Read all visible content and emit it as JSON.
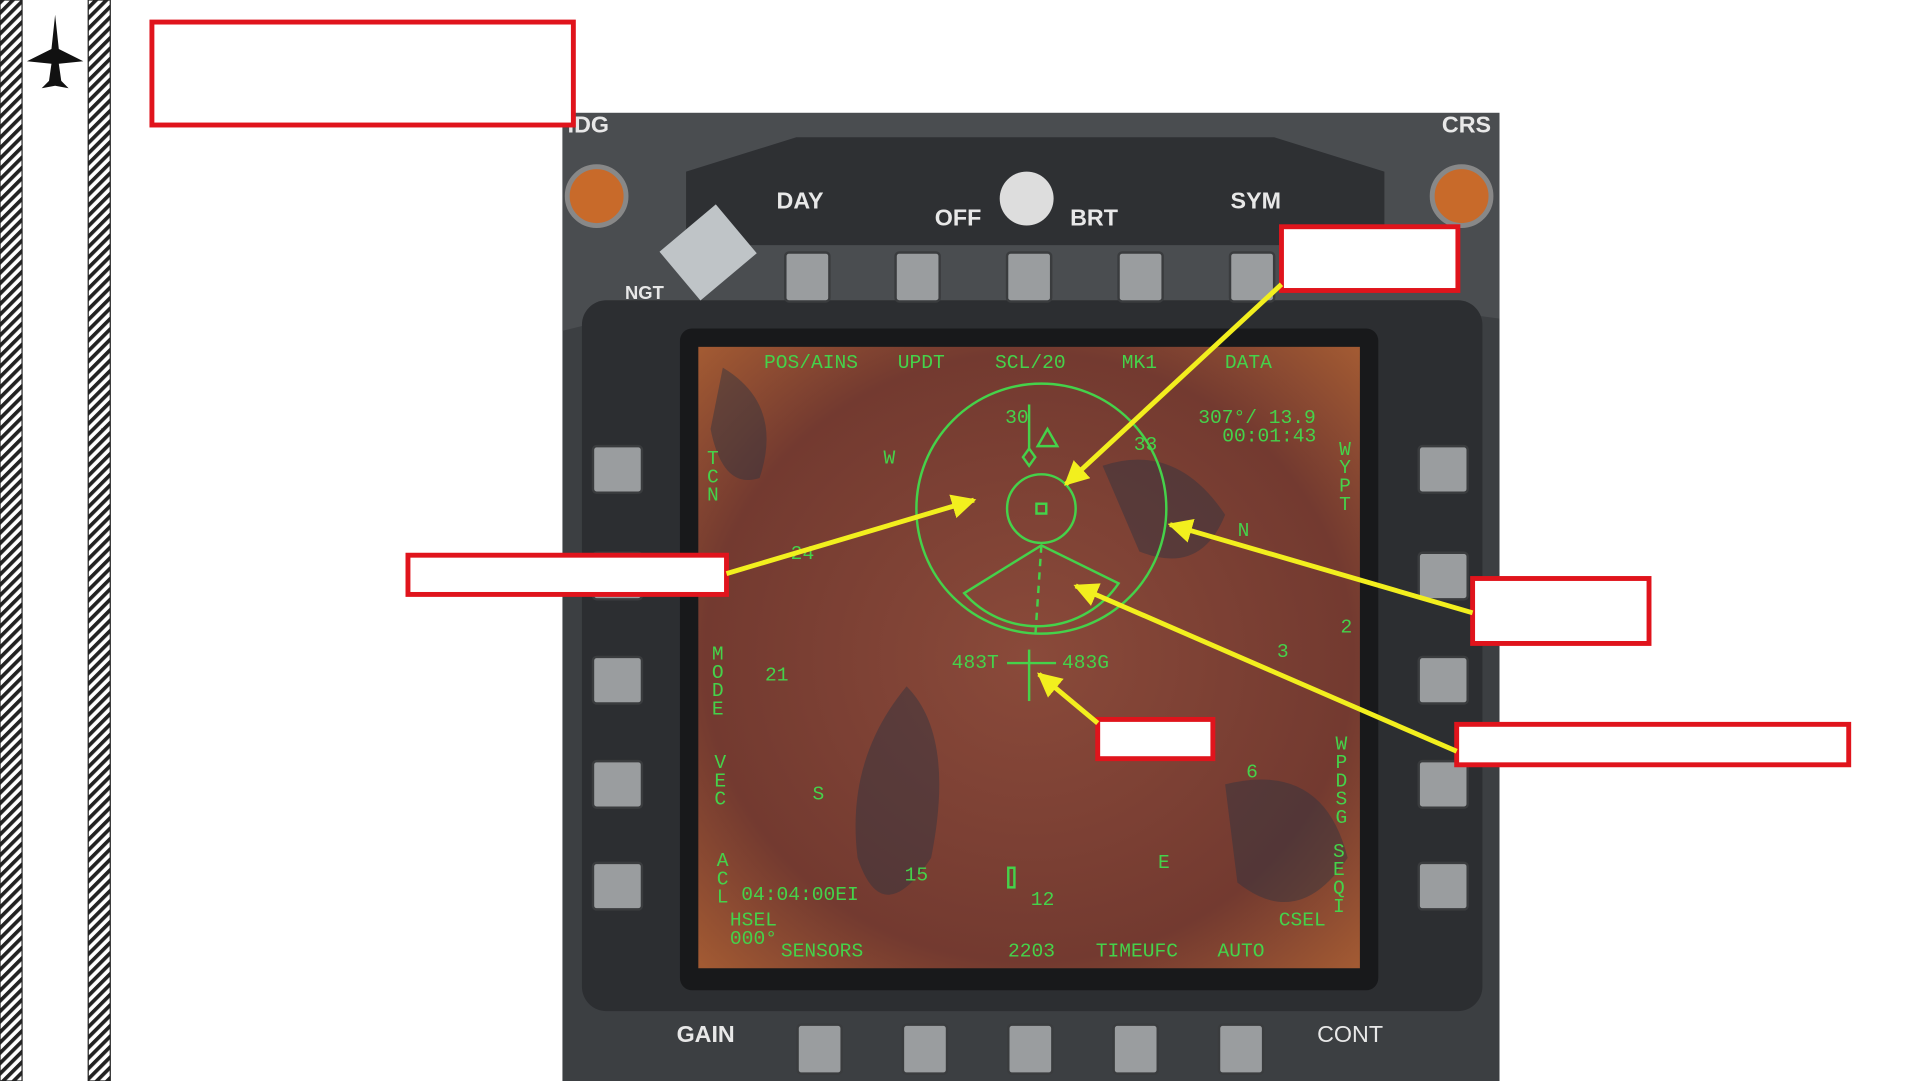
{
  "bezel": {
    "hdg": "HDG",
    "crs": "CRS",
    "day": "DAY",
    "off": "OFF",
    "brt": "BRT",
    "sym": "SYM",
    "ngt": "NGT",
    "gain": "GAIN",
    "cont": "CONT"
  },
  "display": {
    "top_options": [
      "POS/AINS",
      "UPDT",
      "SCL/20",
      "MK1",
      "DATA"
    ],
    "readout": [
      "307°/ 13.9",
      "00:01:43"
    ],
    "left_options": [
      "TCN",
      "MODE",
      "VEC",
      "ACL"
    ],
    "right_options": [
      "WYPT",
      "WPDSG",
      "SEQI"
    ],
    "compass": [
      "30",
      "33",
      "W",
      "N",
      "24",
      "21",
      "3",
      "S",
      "6",
      "15",
      "12",
      "E"
    ],
    "waypoint_number": "2",
    "heading_labels": [
      "483T",
      "483G"
    ],
    "time": "04:04:00EI",
    "hsel": [
      "HSEL",
      "000°"
    ],
    "csel": "CSEL",
    "bottom_options": [
      "SENSORS",
      "2203",
      "TIMEUFC",
      "AUTO"
    ]
  }
}
